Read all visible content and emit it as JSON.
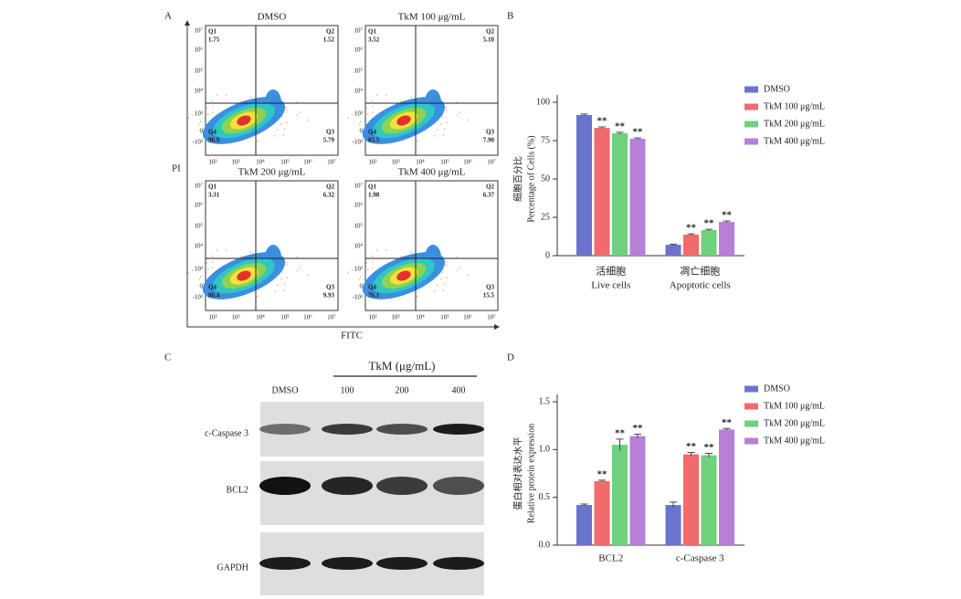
{
  "flow": {
    "label": "A",
    "ylabel": "PI",
    "xlabel": "FITC",
    "yticks": [
      "10⁷",
      "10⁶",
      "10⁵",
      "10⁴",
      "10³",
      "0",
      "-10³"
    ],
    "xticks": [
      "10²",
      "10³",
      "10⁴",
      "10⁵",
      "10⁶",
      "10⁷"
    ],
    "plots": [
      {
        "title": "DMSO",
        "quadrants": [
          {
            "name": "Q1",
            "value": "1.75"
          },
          {
            "name": "Q2",
            "value": "1.52"
          },
          {
            "name": "Q3",
            "value": "5.79"
          },
          {
            "name": "Q4",
            "value": "90.9"
          }
        ]
      },
      {
        "title": "TkM 100 μg/mL",
        "quadrants": [
          {
            "name": "Q1",
            "value": "3.52"
          },
          {
            "name": "Q2",
            "value": "5.10"
          },
          {
            "name": "Q3",
            "value": "7.90"
          },
          {
            "name": "Q4",
            "value": "83.5"
          }
        ]
      },
      {
        "title": "TkM 200 μg/mL",
        "quadrants": [
          {
            "name": "Q1",
            "value": "3.31"
          },
          {
            "name": "Q2",
            "value": "6.32"
          },
          {
            "name": "Q3",
            "value": "9.93"
          },
          {
            "name": "Q4",
            "value": "80.4"
          }
        ]
      },
      {
        "title": "TkM 400 μg/mL",
        "quadrants": [
          {
            "name": "Q1",
            "value": "1.98"
          },
          {
            "name": "Q2",
            "value": "6.37"
          },
          {
            "name": "Q3",
            "value": "15.5"
          },
          {
            "name": "Q4",
            "value": "76.1"
          }
        ]
      }
    ]
  },
  "blot": {
    "label": "C",
    "group_label": "TkM (μg/mL)",
    "lanes": [
      "DMSO",
      "100",
      "200",
      "400"
    ],
    "rows": [
      "c-Caspase 3",
      "BCL2",
      "GAPDH"
    ]
  },
  "chart_data": [
    {
      "type": "bar",
      "label": "B",
      "ylabel_zh": "细胞百分比",
      "ylabel": "Percentage of Cells (%)",
      "categories_zh": [
        "活细胞",
        "凋亡细胞"
      ],
      "categories": [
        "Live cells",
        "Apoptotic cells"
      ],
      "ylim": [
        0,
        100
      ],
      "yticks": [
        0,
        25,
        50,
        75,
        100
      ],
      "legend": "upper right",
      "series": [
        {
          "name": "DMSO",
          "color": "#6b74cc",
          "values": [
            91.7,
            7.1
          ],
          "errors": [
            0.6,
            0.4
          ],
          "annotations": [
            null,
            null
          ]
        },
        {
          "name": "TkM 100 μg/mL",
          "color": "#f06b6b",
          "values": [
            83.3,
            13.7
          ],
          "errors": [
            0.6,
            0.5
          ],
          "annotations": [
            "**",
            "**"
          ]
        },
        {
          "name": "TkM 200 μg/mL",
          "color": "#6fd07d",
          "values": [
            79.8,
            16.7
          ],
          "errors": [
            0.6,
            0.5
          ],
          "annotations": [
            "**",
            "**"
          ]
        },
        {
          "name": "TkM 400 μg/mL",
          "color": "#b67fd8",
          "values": [
            76.2,
            22.0
          ],
          "errors": [
            0.6,
            0.6
          ],
          "annotations": [
            "**",
            "**"
          ]
        }
      ]
    },
    {
      "type": "bar",
      "label": "D",
      "ylabel_zh": "蛋白相对表达水平",
      "ylabel": "Relative protein expression",
      "categories": [
        "BCL2",
        "c-Caspase 3"
      ],
      "ylim": [
        0,
        1.5
      ],
      "yticks": [
        {
          "value": 0,
          "label": "0.0"
        },
        0.5,
        {
          "value": 1,
          "label": "1.0"
        },
        1.5
      ],
      "legend": "upper right",
      "series": [
        {
          "name": "DMSO",
          "color": "#6b74cc",
          "values": [
            0.42,
            0.42
          ],
          "errors": [
            0.01,
            0.03
          ],
          "annotations": [
            null,
            null
          ]
        },
        {
          "name": "TkM 100 μg/mL",
          "color": "#f06b6b",
          "values": [
            0.67,
            0.95
          ],
          "errors": [
            0.01,
            0.02
          ],
          "annotations": [
            "**",
            "**"
          ]
        },
        {
          "name": "TkM 200 μg/mL",
          "color": "#6fd07d",
          "values": [
            1.05,
            0.94
          ],
          "errors": [
            0.06,
            0.02
          ],
          "annotations": [
            "**",
            "**"
          ]
        },
        {
          "name": "TkM 400 μg/mL",
          "color": "#b67fd8",
          "values": [
            1.14,
            1.21
          ],
          "errors": [
            0.02,
            0.01
          ],
          "annotations": [
            "**",
            "**"
          ]
        }
      ]
    }
  ]
}
